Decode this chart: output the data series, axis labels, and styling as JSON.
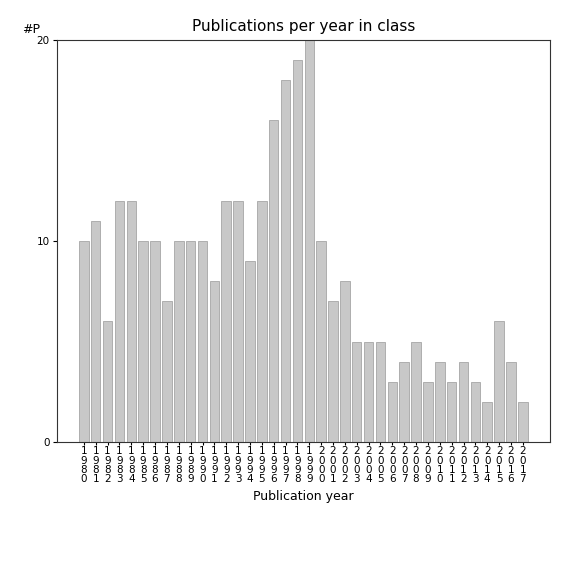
{
  "title": "Publications per year in class",
  "xlabel": "Publication year",
  "ylabel": "#P",
  "bar_color": "#c8c8c8",
  "bar_edgecolor": "#999999",
  "years": [
    "1980",
    "1981",
    "1982",
    "1983",
    "1984",
    "1985",
    "1986",
    "1987",
    "1988",
    "1989",
    "1990",
    "1991",
    "1992",
    "1993",
    "1994",
    "1995",
    "1996",
    "1997",
    "1998",
    "1999",
    "2000",
    "2001",
    "2002",
    "2003",
    "2004",
    "2005",
    "2006",
    "2007",
    "2008",
    "2009",
    "2010",
    "2011",
    "2012",
    "2013",
    "2014",
    "2015",
    "2016",
    "2017"
  ],
  "values": [
    10,
    11,
    6,
    12,
    12,
    10,
    10,
    7,
    10,
    10,
    10,
    8,
    12,
    12,
    9,
    12,
    16,
    18,
    19,
    20,
    10,
    7,
    8,
    5,
    5,
    5,
    3,
    4,
    5,
    3,
    4,
    3,
    4,
    3,
    2,
    6,
    4,
    2
  ],
  "ylim": [
    0,
    20
  ],
  "yticks": [
    0,
    10,
    20
  ],
  "background_color": "#ffffff",
  "title_fontsize": 11,
  "label_fontsize": 9,
  "tick_fontsize": 7.5
}
